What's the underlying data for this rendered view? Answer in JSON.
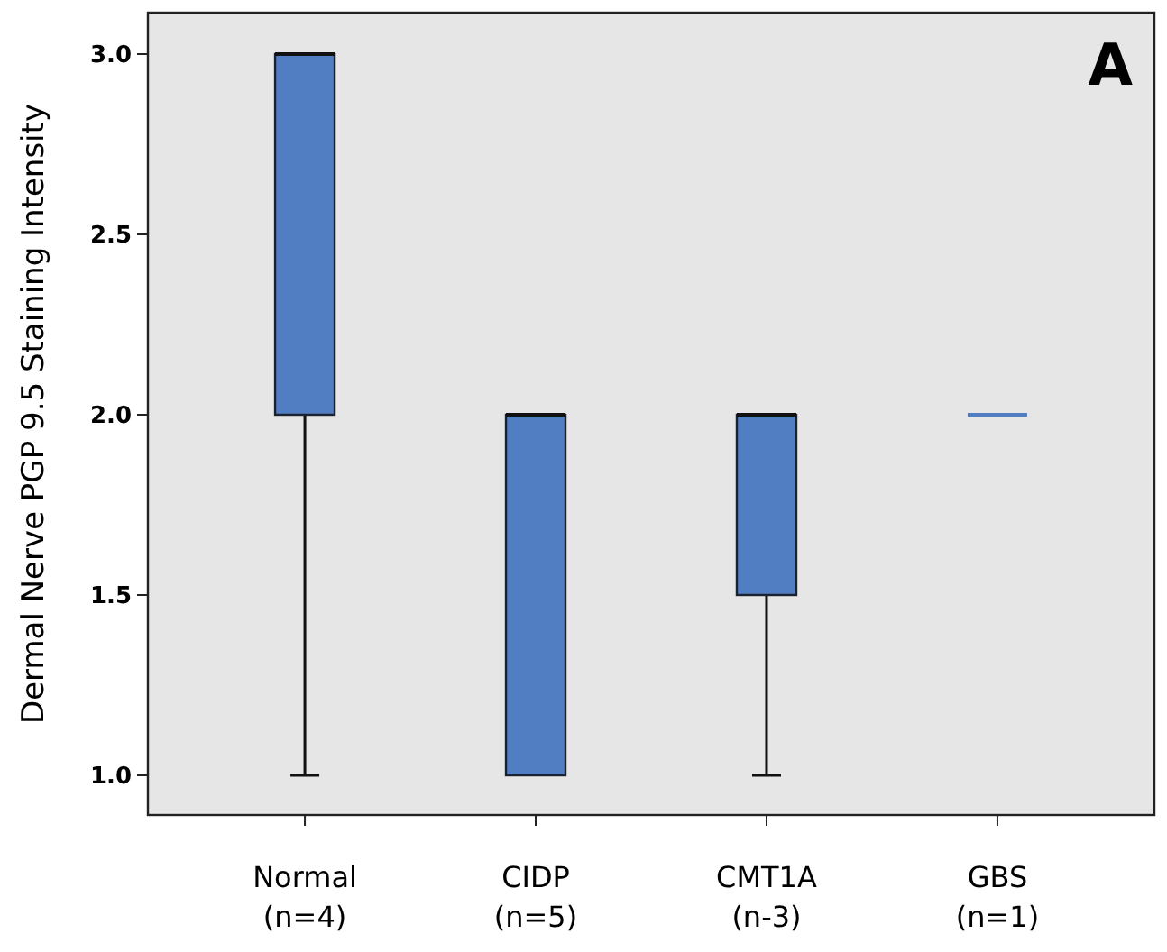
{
  "chart_data": {
    "type": "box",
    "ylabel": "Dermal Nerve PGP 9.5 Staining Intensity",
    "categories": [
      "Normal\n(n=4)",
      "CIDP\n(n=5)",
      "CMT1A\n(n-3)",
      "GBS\n(n=1)"
    ],
    "boxes": [
      {
        "low": 1,
        "q1": 2,
        "median": 3,
        "q3": 3,
        "high": 3
      },
      {
        "low": 1,
        "q1": 1,
        "median": 2,
        "q3": 2,
        "high": 2
      },
      {
        "low": 1,
        "q1": 1.5,
        "median": 2,
        "q3": 2,
        "high": 2
      },
      {
        "low": 2,
        "q1": 2,
        "median": 2,
        "q3": 2,
        "high": 2
      }
    ],
    "color": "#517dc2",
    "ylim": [
      0.89,
      3.115
    ],
    "yticks": [
      {
        "value": 1,
        "label": "1.0"
      },
      {
        "value": 1.5,
        "label": "1.5"
      },
      {
        "value": 2,
        "label": "2.0"
      },
      {
        "value": 2.5,
        "label": "2.5"
      },
      {
        "value": 3,
        "label": "3.0"
      }
    ],
    "annotations": [
      {
        "text": "A"
      }
    ]
  }
}
